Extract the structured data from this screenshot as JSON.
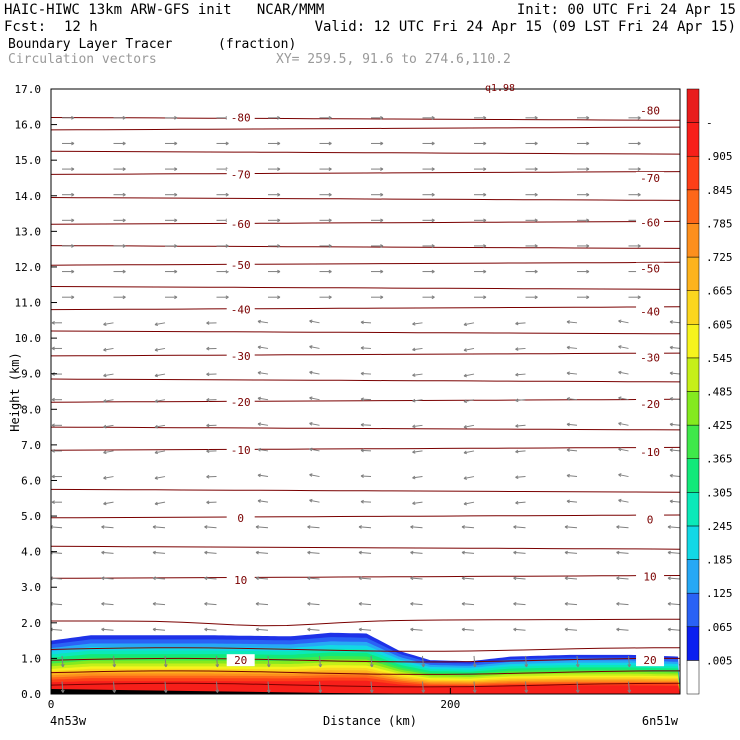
{
  "header": {
    "title_left": "HAIC-HIWC 13km ARW-GFS init   NCAR/MMM",
    "init": "Init: 00 UTC Fri 24 Apr 15",
    "fcst_label": "Fcst:",
    "fcst_value": "12 h",
    "valid": "Valid: 12 UTC Fri 24 Apr 15 (09 LST Fri 24 Apr 15)",
    "field": "Boundary Layer Tracer",
    "units": "(fraction)",
    "vectors": "Circulation vectors",
    "xy": "XY= 259.5, 91.6 to 274.6,110.2"
  },
  "chart_data": {
    "type": "heatmap",
    "ylabel": "Height (km)",
    "xlabel": "Distance (km)",
    "x_start_label": "4n53w",
    "x_end_label": "6n51w",
    "xlim": [
      0,
      315
    ],
    "ylim": [
      0,
      17
    ],
    "x_ticks": [
      {
        "value": 0,
        "label": "0"
      },
      {
        "value": 200,
        "label": "200"
      }
    ],
    "y_ticks": [
      "0.0",
      "1.0",
      "2.0",
      "3.0",
      "4.0",
      "5.0",
      "6.0",
      "7.0",
      "8.0",
      "9.0",
      "10.0",
      "11.0",
      "12.0",
      "13.0",
      "14.0",
      "15.0",
      "16.0",
      "17.0"
    ],
    "colorbar_labels": [
      ".005",
      ".065",
      ".125",
      ".185",
      ".245",
      ".305",
      ".365",
      ".425",
      ".485",
      ".545",
      ".605",
      ".665",
      ".725",
      ".785",
      ".845",
      ".905",
      "-"
    ],
    "colorbar_colors": [
      "#ffffff",
      "#0a1ff0",
      "#2a62f5",
      "#27a8f5",
      "#13d8e6",
      "#0be9b9",
      "#12e97a",
      "#3fe84a",
      "#84ea1f",
      "#c6ef19",
      "#f6f31d",
      "#fbd61e",
      "#fdb31d",
      "#fd8f1d",
      "#fe6719",
      "#fd3f18",
      "#f71f1a",
      "#e81d1d"
    ],
    "tracer_top_profile": [
      [
        0,
        1.5
      ],
      [
        20,
        1.65
      ],
      [
        80,
        1.65
      ],
      [
        120,
        1.62
      ],
      [
        140,
        1.72
      ],
      [
        158,
        1.7
      ],
      [
        175,
        1.2
      ],
      [
        190,
        0.95
      ],
      [
        210,
        0.92
      ],
      [
        230,
        1.05
      ],
      [
        260,
        1.1
      ],
      [
        290,
        1.1
      ],
      [
        315,
        1.05
      ]
    ],
    "isotherm_labels": [
      {
        "label": "-80",
        "left": 16.2,
        "right": 16.4
      },
      {
        "label": "-70",
        "left": 14.6,
        "right": 14.5
      },
      {
        "label": "-60",
        "left": 13.2,
        "right": 13.25
      },
      {
        "label": "-50",
        "left": 12.05,
        "right": 11.95
      },
      {
        "label": "-40",
        "left": 10.8,
        "right": 10.75
      },
      {
        "label": "-30",
        "left": 9.5,
        "right": 9.45
      },
      {
        "label": "-20",
        "left": 8.2,
        "right": 8.15
      },
      {
        "label": "-10",
        "left": 6.85,
        "right": 6.8
      },
      {
        "label": "0",
        "left": 4.95,
        "right": 4.9
      },
      {
        "label": "10",
        "left": 3.2,
        "right": 3.3
      },
      {
        "label": "20",
        "left": 0.95,
        "right": 0.95
      }
    ],
    "theta_levels_km": [
      0.25,
      0.6,
      0.95,
      1.25,
      2.05,
      3.25,
      4.15,
      4.95,
      5.75,
      6.85,
      7.5,
      8.2,
      8.85,
      9.5,
      10.2,
      10.8,
      11.45,
      12.05,
      12.6,
      13.2,
      13.95,
      14.6,
      15.25,
      15.85,
      16.2,
      17.0
    ],
    "top_label": "q1.98",
    "vector_color": "#808080",
    "contour_color": "#7a0000",
    "terrain_color": "#000000"
  }
}
